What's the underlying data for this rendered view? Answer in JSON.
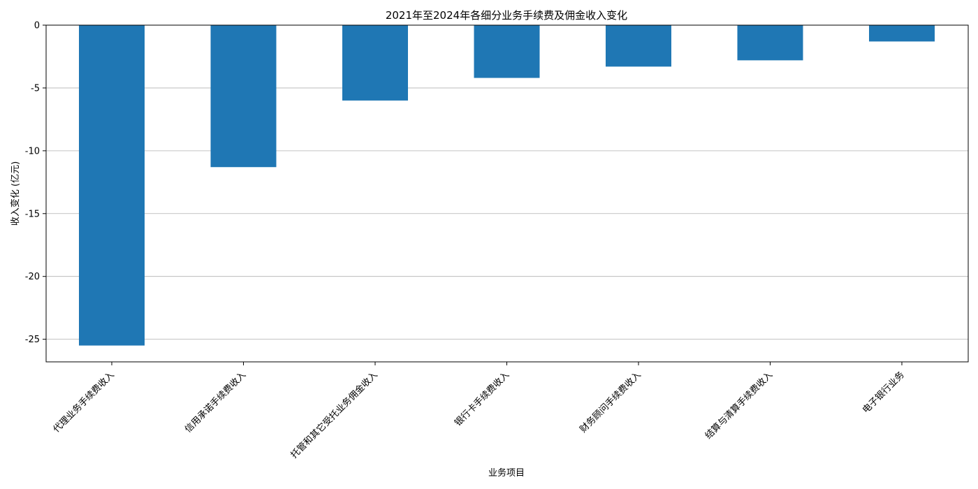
{
  "chart_data": {
    "type": "bar",
    "title": "2021年至2024年各细分业务手续费及佣金收入变化",
    "xlabel": "业务项目",
    "ylabel": "收入变化 (亿元)",
    "categories": [
      "代理业务手续费收入",
      "信用承诺手续费收入",
      "托管和其它受托业务佣金收入",
      "银行卡手续费收入",
      "财务顾问手续费收入",
      "结算与清算手续费收入",
      "电子银行业务"
    ],
    "series": [
      {
        "values": [
          -25.5,
          -11.3,
          -6.0,
          -4.2,
          -3.3,
          -2.8,
          -1.3
        ]
      }
    ],
    "yticks": [
      0,
      -5,
      -10,
      -15,
      -20,
      -25
    ],
    "ytick_labels": [
      "0",
      "-5",
      "-10",
      "-15",
      "-20",
      "-25"
    ],
    "ylim": [
      -26.8,
      0
    ],
    "grid": "y",
    "bar_color": "#1f77b4",
    "legend": "none"
  }
}
